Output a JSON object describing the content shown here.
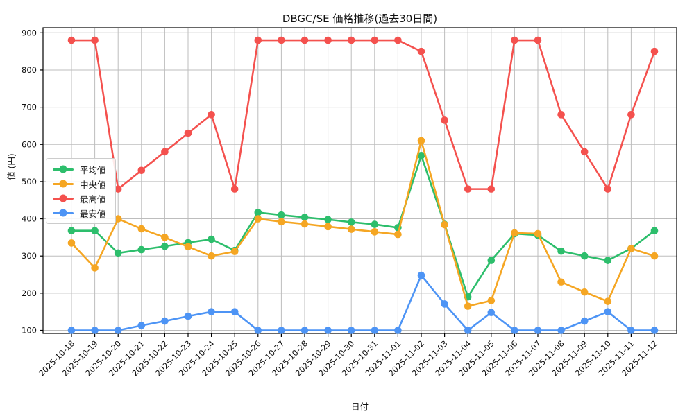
{
  "chart_data": {
    "type": "line",
    "title": "DBGC/SE 価格推移(過去30日間)",
    "xlabel": "日付",
    "ylabel": "値 (円)",
    "ylim": [
      100,
      900
    ],
    "yticks": [
      100,
      200,
      300,
      400,
      500,
      600,
      700,
      800,
      900
    ],
    "grid": true,
    "legend_position": "inside-left",
    "categories": [
      "2025-10-18",
      "2025-10-19",
      "2025-10-20",
      "2025-10-21",
      "2025-10-22",
      "2025-10-23",
      "2025-10-24",
      "2025-10-25",
      "2025-10-26",
      "2025-10-27",
      "2025-10-28",
      "2025-10-29",
      "2025-10-30",
      "2025-10-31",
      "2025-11-01",
      "2025-11-02",
      "2025-11-03",
      "2025-11-04",
      "2025-11-05",
      "2025-11-06",
      "2025-11-07",
      "2025-11-08",
      "2025-11-09",
      "2025-11-10",
      "2025-11-11",
      "2025-11-12"
    ],
    "series": [
      {
        "name": "平均値",
        "color": "#2DBE6C",
        "values": [
          368,
          368,
          308,
          317,
          326,
          336,
          345,
          315,
          417,
          410,
          404,
          398,
          391,
          385,
          376,
          570,
          385,
          190,
          288,
          360,
          356,
          313,
          300,
          288,
          320,
          368
        ]
      },
      {
        "name": "中央値",
        "color": "#F5A623",
        "values": [
          335,
          268,
          400,
          373,
          350,
          325,
          300,
          312,
          400,
          392,
          386,
          379,
          372,
          365,
          358,
          610,
          384,
          165,
          180,
          362,
          360,
          230,
          203,
          178,
          320,
          300
        ]
      },
      {
        "name": "最高値",
        "color": "#F4514E",
        "values": [
          880,
          880,
          480,
          530,
          580,
          630,
          680,
          480,
          880,
          880,
          880,
          880,
          880,
          880,
          880,
          850,
          665,
          480,
          480,
          880,
          880,
          680,
          580,
          480,
          680,
          850
        ]
      },
      {
        "name": "最安値",
        "color": "#4D94F5",
        "values": [
          100,
          100,
          100,
          113,
          125,
          138,
          150,
          150,
          100,
          100,
          100,
          100,
          100,
          100,
          100,
          248,
          171,
          100,
          148,
          100,
          100,
          100,
          125,
          150,
          100,
          100
        ]
      }
    ]
  }
}
